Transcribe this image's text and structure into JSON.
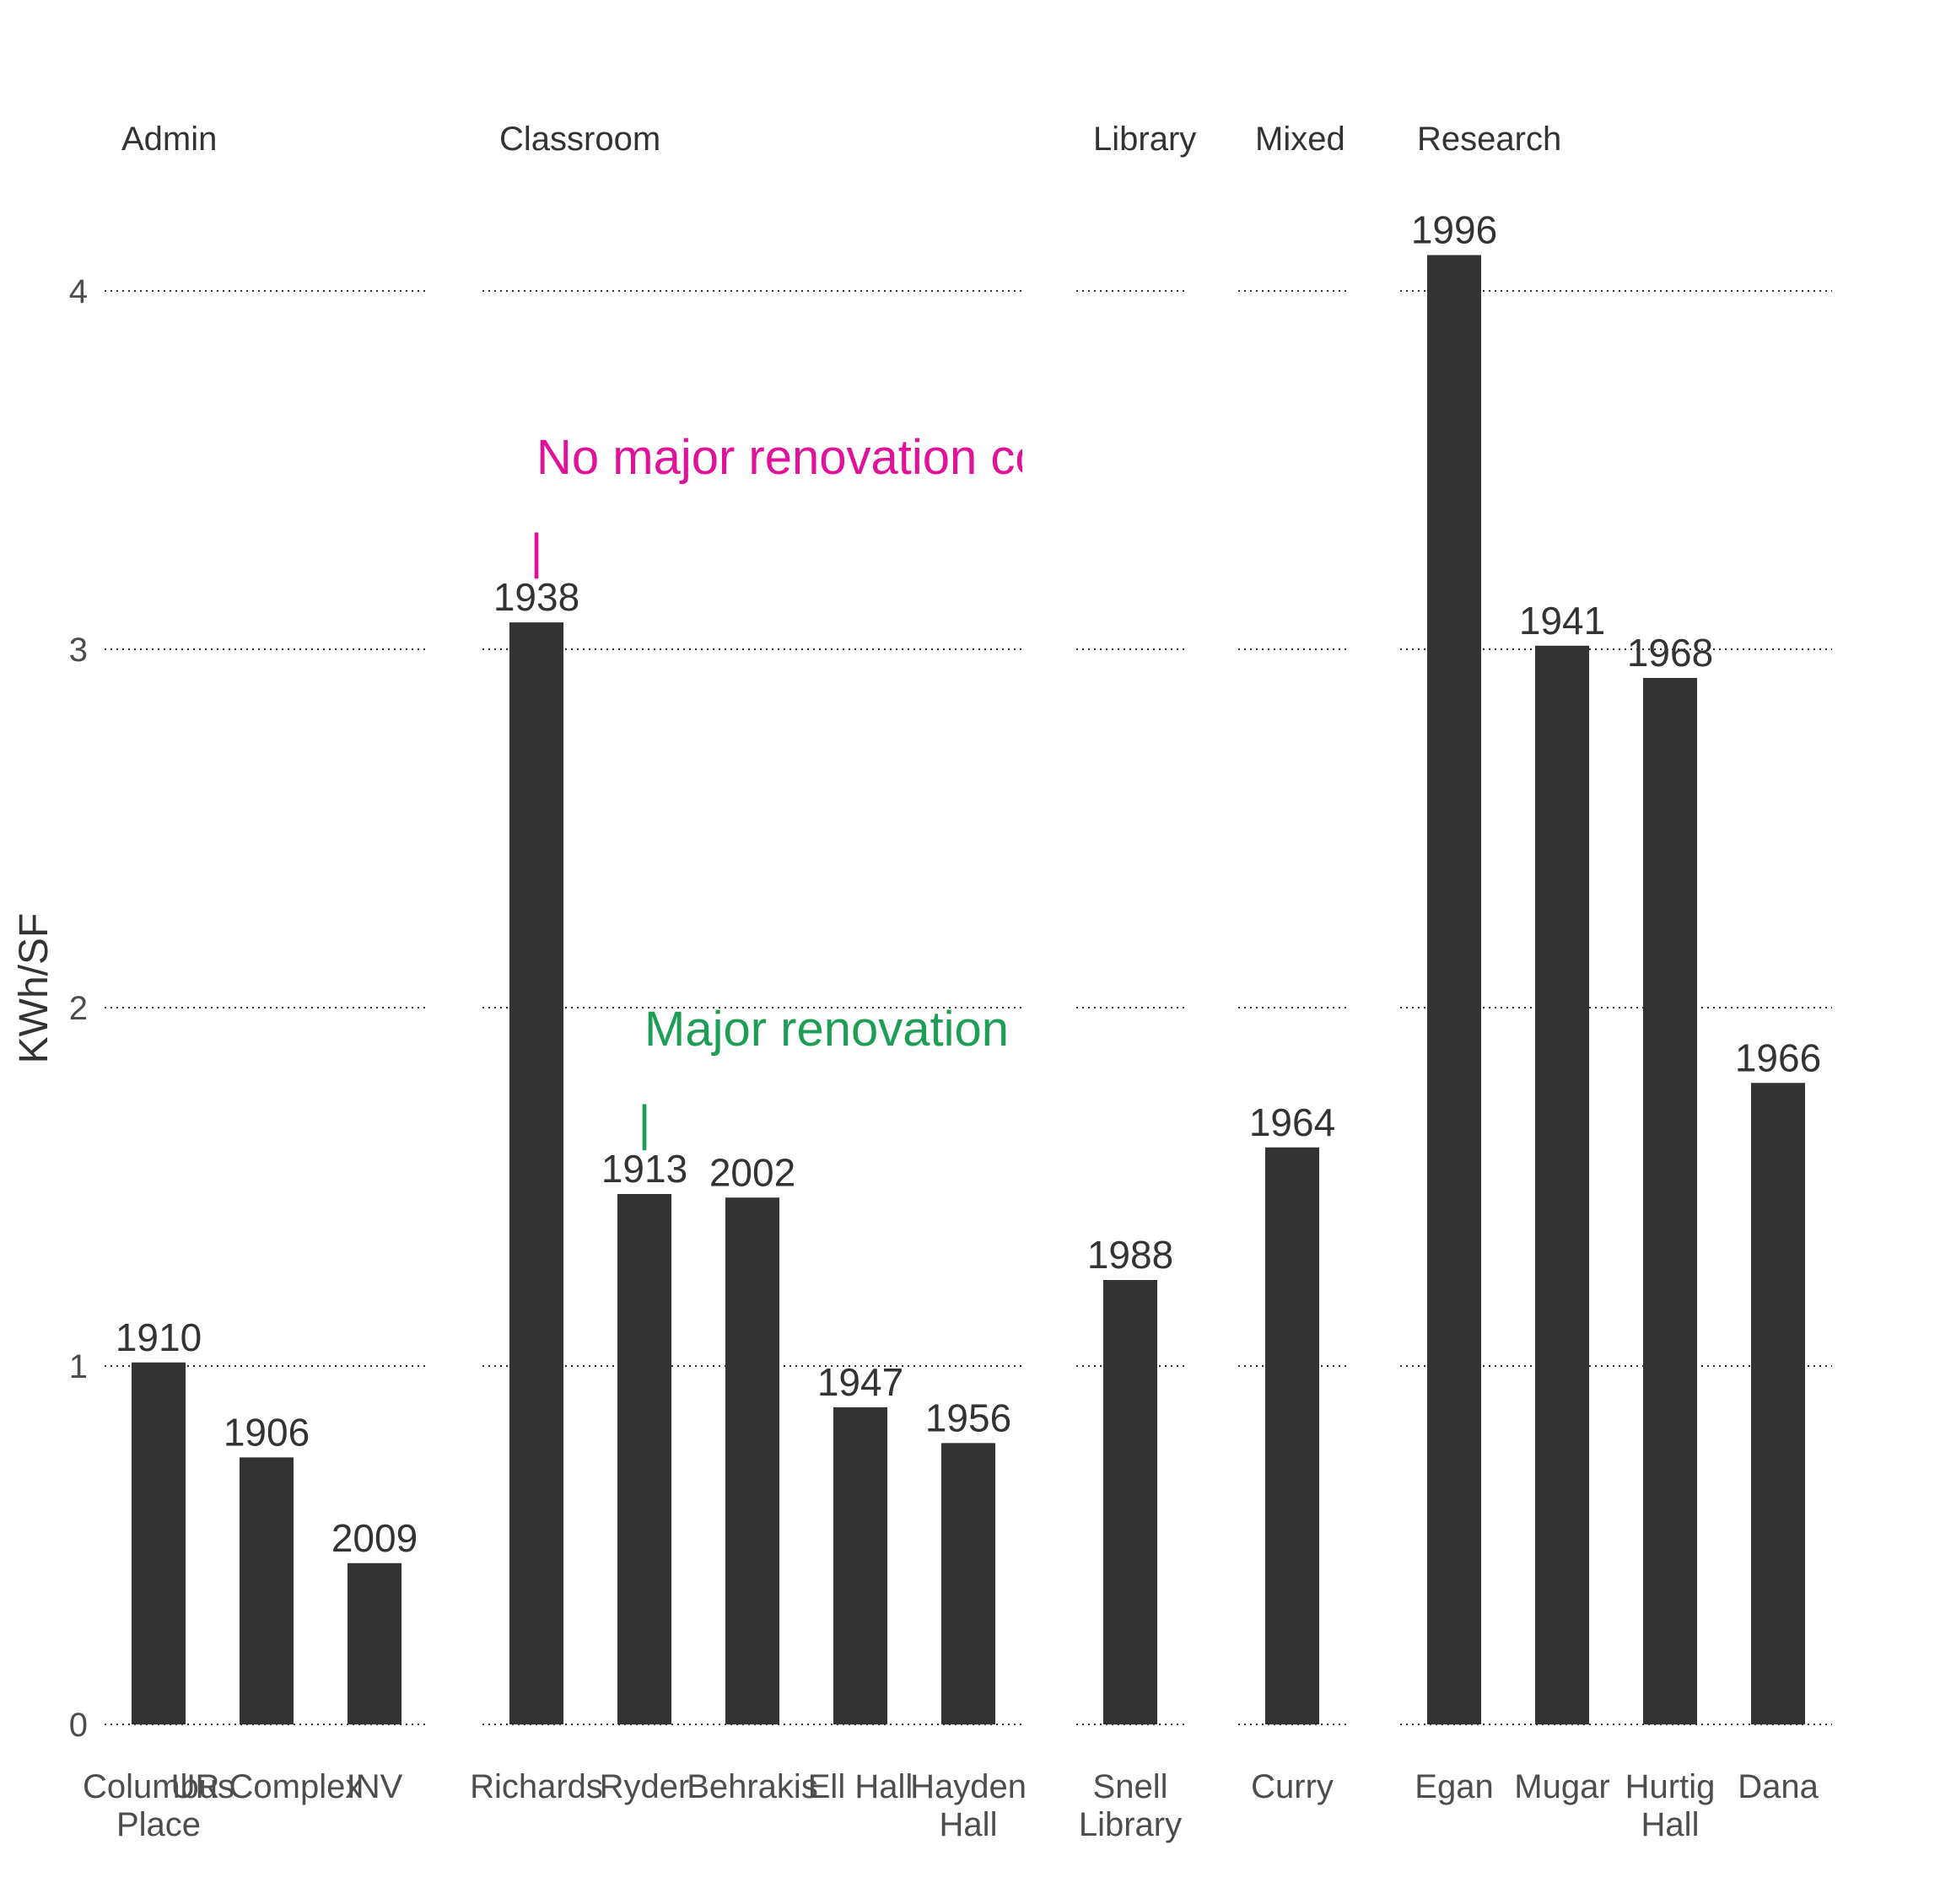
{
  "chart_data": {
    "type": "bar",
    "ylabel": "KWh/SF",
    "xlabel": "",
    "ylim": [
      0,
      4.3
    ],
    "yticks": [
      0,
      1,
      2,
      3,
      4
    ],
    "grid": true,
    "bar_color": "#333333",
    "facets": [
      {
        "name": "Admin",
        "categories": [
          "Columbus\nPlace",
          "UR Complex",
          "INV"
        ],
        "values": [
          1.01,
          0.745,
          0.45
        ],
        "labels": [
          "1910",
          "1906",
          "2009"
        ]
      },
      {
        "name": "Classroom",
        "categories": [
          "Richards",
          "Ryder",
          "Behrakis",
          "Ell Hall",
          "Hayden\nHall"
        ],
        "values": [
          3.075,
          1.48,
          1.47,
          0.885,
          0.785
        ],
        "labels": [
          "1938",
          "1913",
          "2002",
          "1947",
          "1956"
        ]
      },
      {
        "name": "Library",
        "categories": [
          "Snell\nLibrary"
        ],
        "values": [
          1.24
        ],
        "labels": [
          "1988"
        ]
      },
      {
        "name": "Mixed",
        "categories": [
          "Curry"
        ],
        "values": [
          1.61
        ],
        "labels": [
          "1964"
        ]
      },
      {
        "name": "Research",
        "categories": [
          "Egan",
          "Mugar",
          "Hurtig\nHall",
          "Dana"
        ],
        "values": [
          4.1,
          3.01,
          2.92,
          1.79
        ],
        "labels": [
          "1996",
          "1941",
          "1968",
          "1966"
        ]
      }
    ],
    "annotations": [
      {
        "facet": "Classroom",
        "category": "Richards",
        "text": "No major renovation co",
        "color": "#e0129a",
        "marker": "|"
      },
      {
        "facet": "Classroom",
        "category": "Ryder",
        "text": "Major renovation",
        "color": "#1e9e55",
        "marker": "|"
      }
    ]
  }
}
